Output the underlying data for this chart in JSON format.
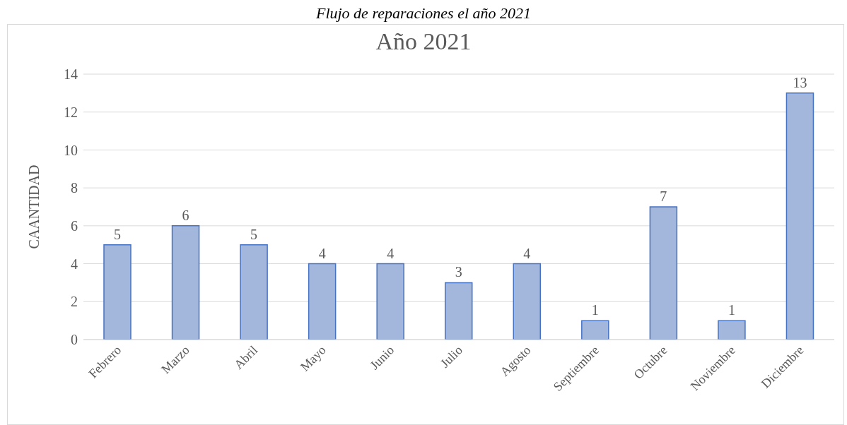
{
  "chart_data": {
    "type": "bar",
    "title": "Año 2021",
    "ylabel": "CAANTIDAD",
    "annotations": [
      "Flujo de reparaciones el año 2021"
    ],
    "categories": [
      "Febrero",
      "Marzo",
      "Abril",
      "Mayo",
      "Junio",
      "Julio",
      "Agosto",
      "Septiembre",
      "Octubre",
      "Noviembre",
      "Diciembre"
    ],
    "values": [
      5,
      6,
      5,
      4,
      4,
      3,
      4,
      1,
      7,
      1,
      13
    ],
    "color": "#a3b7dc",
    "ylim": [
      0,
      14
    ],
    "yticks": [
      0,
      2,
      4,
      6,
      8,
      10,
      12,
      14
    ],
    "grid": "y",
    "data_labels": true
  }
}
